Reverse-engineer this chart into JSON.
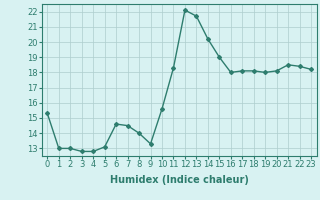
{
  "x": [
    0,
    1,
    2,
    3,
    4,
    5,
    6,
    7,
    8,
    9,
    10,
    11,
    12,
    13,
    14,
    15,
    16,
    17,
    18,
    19,
    20,
    21,
    22,
    23
  ],
  "y": [
    15.3,
    13.0,
    13.0,
    12.8,
    12.8,
    13.1,
    14.6,
    14.5,
    14.0,
    13.3,
    15.6,
    18.3,
    22.1,
    21.7,
    20.2,
    19.0,
    18.0,
    18.1,
    18.1,
    18.0,
    18.1,
    18.5,
    18.4,
    18.2
  ],
  "line_color": "#2e7d6e",
  "marker": "D",
  "marker_size": 2.0,
  "bg_color": "#d8f2f2",
  "grid_color": "#aecece",
  "tick_color": "#2e7d6e",
  "xlabel": "Humidex (Indice chaleur)",
  "ylim": [
    12.5,
    22.5
  ],
  "xlim": [
    -0.5,
    23.5
  ],
  "yticks": [
    13,
    14,
    15,
    16,
    17,
    18,
    19,
    20,
    21,
    22
  ],
  "xticks": [
    0,
    1,
    2,
    3,
    4,
    5,
    6,
    7,
    8,
    9,
    10,
    11,
    12,
    13,
    14,
    15,
    16,
    17,
    18,
    19,
    20,
    21,
    22,
    23
  ],
  "xlabel_fontsize": 7,
  "tick_fontsize": 6,
  "line_width": 1.0
}
